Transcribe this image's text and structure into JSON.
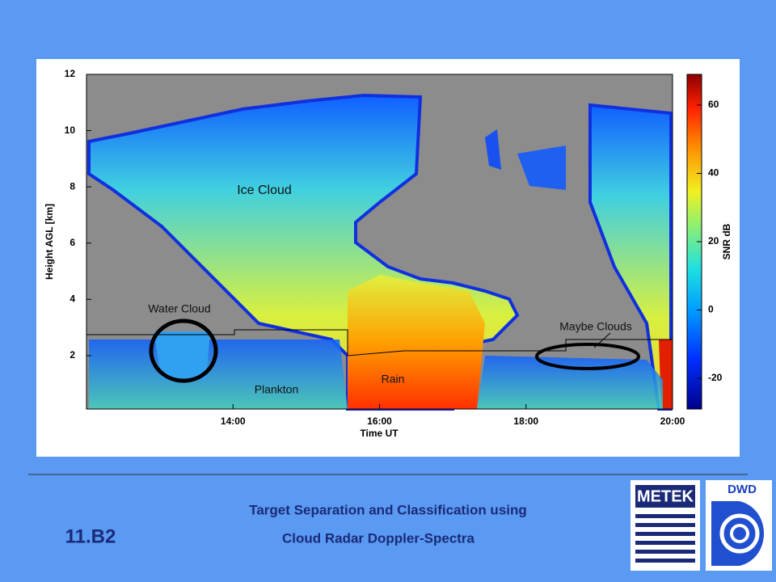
{
  "figure": {
    "y_label": "Height AGL [km]",
    "x_label": "Time UT",
    "colorbar_label": "SNR dB",
    "ylim": [
      0.1,
      12
    ],
    "yticks": [
      2,
      4,
      6,
      8,
      10,
      12
    ],
    "xlim": [
      12,
      20
    ],
    "xticks": [
      {
        "value": 14,
        "label": "14:00"
      },
      {
        "value": 16,
        "label": "16:00"
      },
      {
        "value": 18,
        "label": "18:00"
      },
      {
        "value": 20,
        "label": "20:00"
      }
    ],
    "clim": [
      -29,
      69
    ],
    "cticks": [
      -20,
      0,
      20,
      40,
      60
    ],
    "annotations": [
      "Ice Cloud",
      "Water Cloud",
      "Maybe Clouds",
      "Rain",
      "Plankton"
    ]
  },
  "footer": {
    "code": "11.B2",
    "title_line1": "Target Separation and Classification using",
    "title_line2": "Cloud Radar Doppler-Spectra"
  },
  "logos": [
    "METEK",
    "DWD"
  ]
}
